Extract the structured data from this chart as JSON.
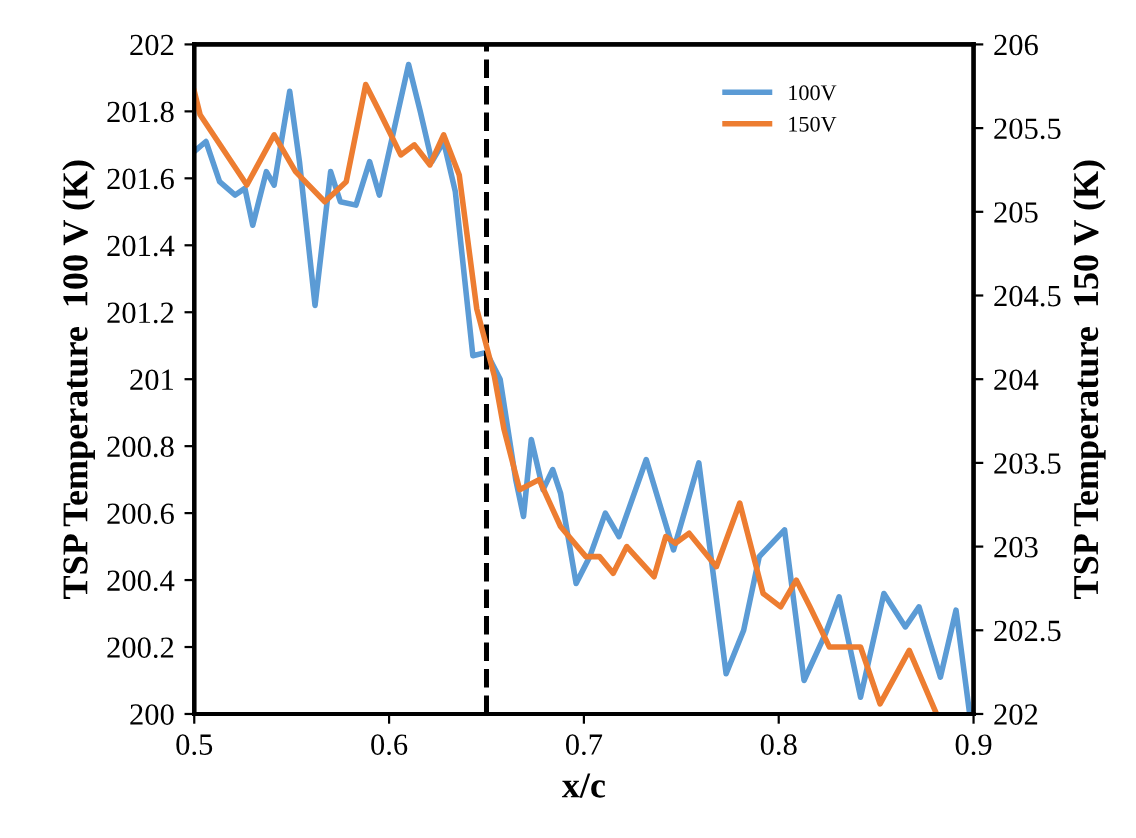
{
  "chart_data": {
    "type": "line",
    "xlabel": "x/c",
    "ylabel": "TSP Temperature  100 V (K)",
    "y2label": "TSP Temperature  150 V (K)",
    "xlim": [
      0.5,
      0.9
    ],
    "xticks": [
      0.5,
      0.6,
      0.7,
      0.8,
      0.9
    ],
    "ylim": [
      200,
      202
    ],
    "yticks": [
      200,
      200.2,
      200.4,
      200.6,
      200.8,
      201,
      201.2,
      201.4,
      201.6,
      201.8,
      202
    ],
    "y2lim": [
      202,
      206
    ],
    "y2ticks": [
      202,
      202.5,
      203,
      203.5,
      204,
      204.5,
      205,
      205.5,
      206
    ],
    "grid": false,
    "legend": "top right",
    "marker": "none",
    "line_style": "solid",
    "ref_lines": [
      {
        "axis": "x",
        "value": 0.65,
        "color": "#000000",
        "line_style": "dashed"
      }
    ],
    "series": [
      {
        "name": "100V",
        "color": "#5b9bd5",
        "x": [
          0.5,
          0.506,
          0.513,
          0.521,
          0.526,
          0.53,
          0.537,
          0.541,
          0.549,
          0.554,
          0.562,
          0.57,
          0.575,
          0.583,
          0.59,
          0.595,
          0.61,
          0.616,
          0.622,
          0.628,
          0.634,
          0.643,
          0.65,
          0.657,
          0.665,
          0.669,
          0.673,
          0.679,
          0.684,
          0.688,
          0.696,
          0.703,
          0.711,
          0.718,
          0.732,
          0.746,
          0.759,
          0.773,
          0.782,
          0.79,
          0.803,
          0.813,
          0.824,
          0.831,
          0.842,
          0.854,
          0.865,
          0.872,
          0.883,
          0.891,
          0.898
        ],
        "values": [
          201.68,
          201.71,
          201.59,
          201.55,
          201.57,
          201.46,
          201.62,
          201.58,
          201.86,
          201.65,
          201.22,
          201.62,
          201.53,
          201.52,
          201.65,
          201.55,
          201.94,
          201.8,
          201.65,
          201.71,
          201.56,
          201.07,
          201.08,
          201.0,
          200.7,
          200.59,
          200.82,
          200.67,
          200.73,
          200.66,
          200.39,
          200.47,
          200.6,
          200.53,
          200.76,
          200.49,
          200.75,
          200.12,
          200.25,
          200.47,
          200.55,
          200.1,
          200.24,
          200.35,
          200.05,
          200.36,
          200.26,
          200.32,
          200.11,
          200.31,
          200.0
        ]
      },
      {
        "name": "150V",
        "color": "#ed7d31",
        "axis": "y2",
        "x": [
          0.5,
          0.503,
          0.527,
          0.541,
          0.552,
          0.567,
          0.578,
          0.588,
          0.595,
          0.606,
          0.613,
          0.621,
          0.628,
          0.636,
          0.645,
          0.654,
          0.659,
          0.667,
          0.677,
          0.688,
          0.701,
          0.708,
          0.715,
          0.722,
          0.736,
          0.742,
          0.747,
          0.754,
          0.768,
          0.78,
          0.792,
          0.801,
          0.809,
          0.816,
          0.826,
          0.842,
          0.852,
          0.867,
          0.881
        ],
        "values": [
          205.72,
          205.58,
          205.16,
          205.46,
          205.24,
          205.06,
          205.18,
          205.76,
          205.6,
          205.34,
          205.4,
          205.28,
          205.46,
          205.22,
          204.42,
          204.02,
          203.7,
          203.34,
          203.4,
          203.12,
          202.94,
          202.94,
          202.84,
          203.0,
          202.82,
          203.06,
          203.02,
          203.08,
          202.88,
          203.26,
          202.72,
          202.64,
          202.8,
          202.64,
          202.4,
          202.4,
          202.06,
          202.38,
          202.0
        ]
      }
    ]
  }
}
